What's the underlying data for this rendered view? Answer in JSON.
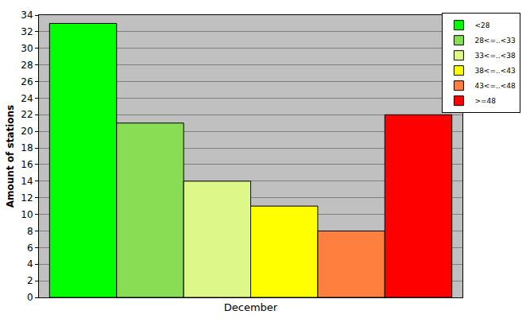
{
  "chart_data": {
    "type": "bar",
    "y_label": "Amount of stations",
    "categories": [
      "December"
    ],
    "series": [
      {
        "name": "<28",
        "color": "#00ff00",
        "values": [
          33
        ]
      },
      {
        "name": "28<=..<33",
        "color": "#88dd55",
        "values": [
          21
        ]
      },
      {
        "name": "33<=..<38",
        "color": "#ddf888",
        "values": [
          14
        ]
      },
      {
        "name": "38<=..<43",
        "color": "#ffff00",
        "values": [
          11
        ]
      },
      {
        "name": "43<=..<48",
        "color": "#ff7f3f",
        "values": [
          8
        ]
      },
      {
        "name": ">=48",
        "color": "#ff0000",
        "values": [
          22
        ]
      }
    ],
    "ylim": [
      0,
      34
    ],
    "yticks": [
      0,
      2,
      4,
      6,
      8,
      10,
      12,
      14,
      16,
      18,
      20,
      22,
      24,
      26,
      28,
      30,
      32,
      34
    ],
    "grid": true,
    "legend": "top right"
  }
}
